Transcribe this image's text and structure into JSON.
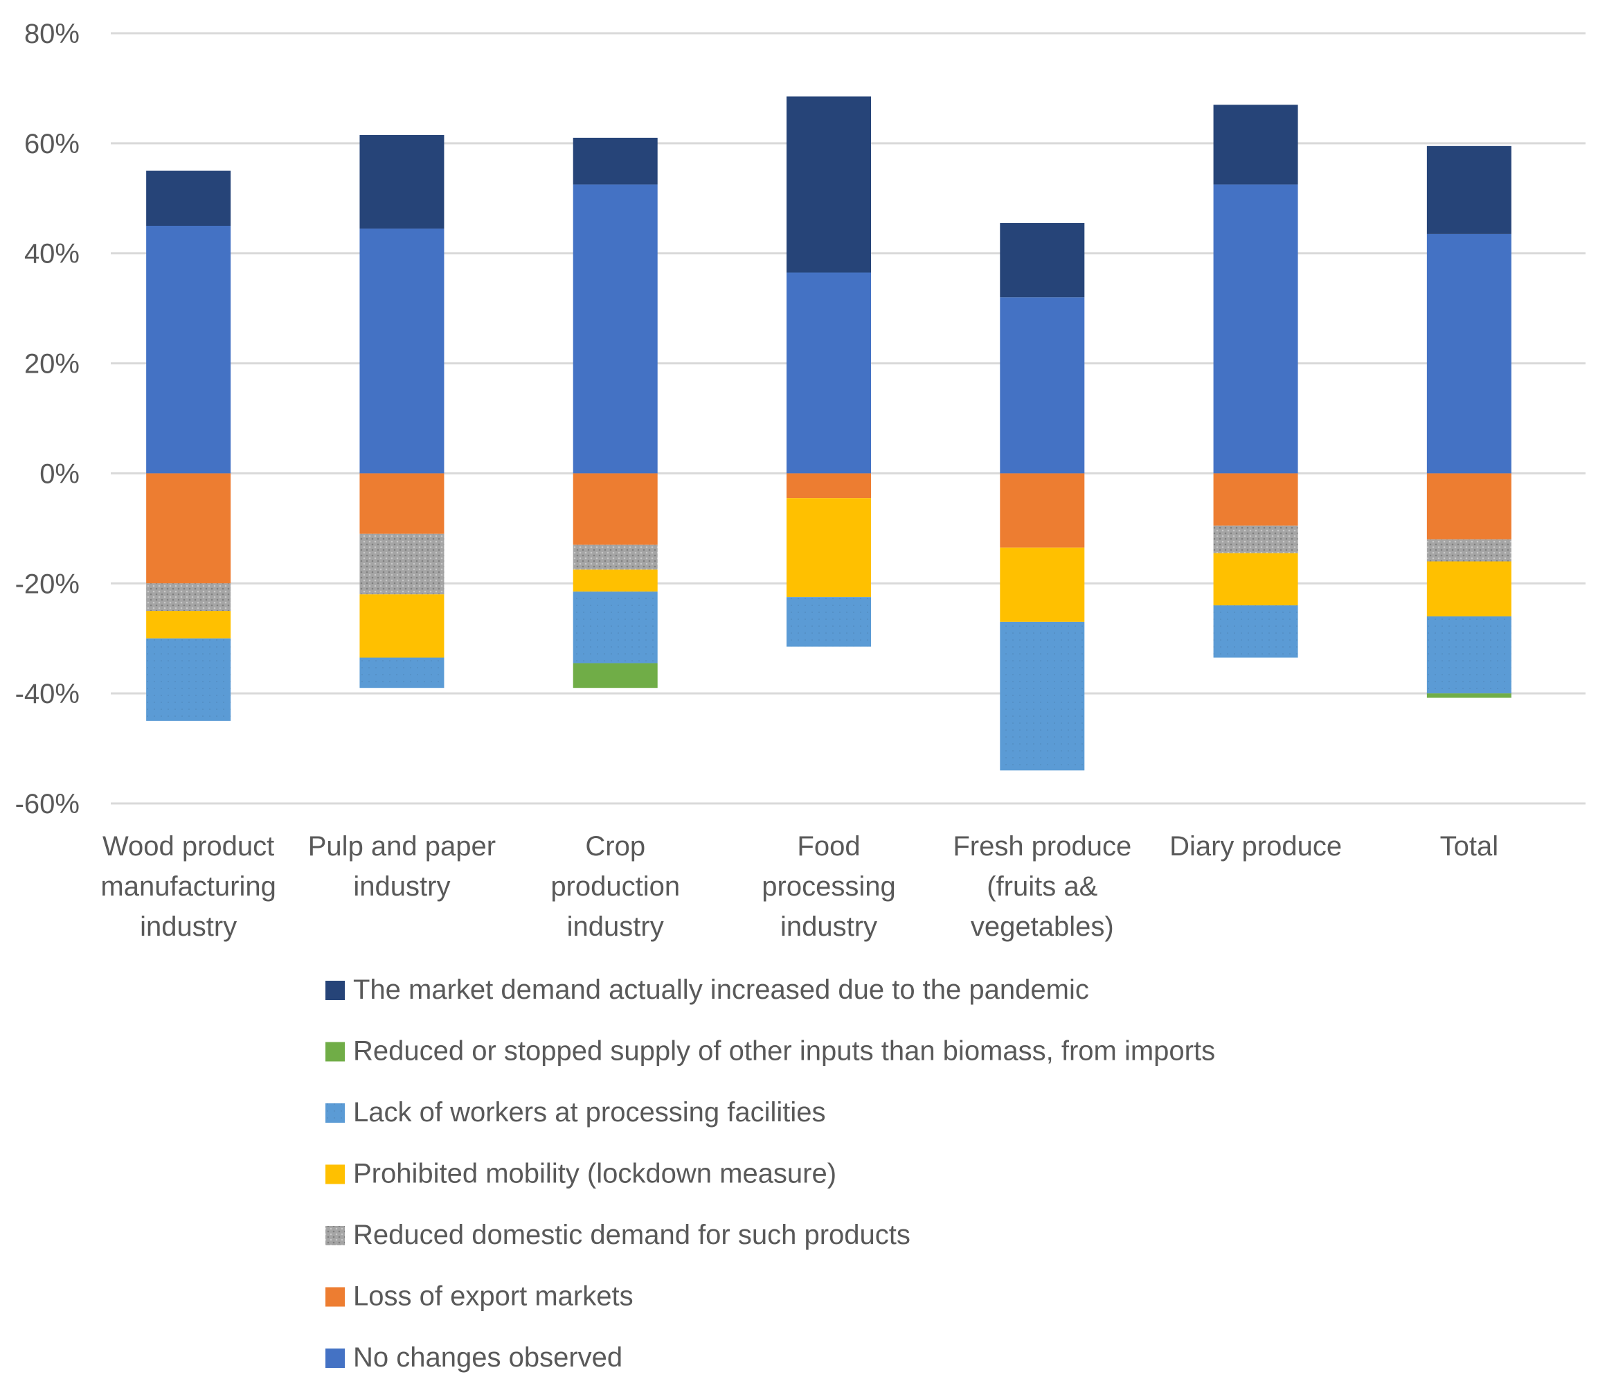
{
  "chart_data": {
    "type": "bar",
    "stacked": true,
    "title": "",
    "xlabel": "",
    "ylabel": "",
    "ylim": [
      -60,
      80
    ],
    "yticks": [
      "80%",
      "60%",
      "40%",
      "20%",
      "0%",
      "-20%",
      "-40%",
      "-60%"
    ],
    "ytick_values": [
      80,
      60,
      40,
      20,
      0,
      -20,
      -40,
      -60
    ],
    "grid": true,
    "categories": [
      [
        "Wood product",
        "manufacturing",
        "industry"
      ],
      [
        "Pulp and paper",
        "industry"
      ],
      [
        "Crop",
        "production",
        "industry"
      ],
      [
        "Food",
        "processing",
        "industry"
      ],
      [
        "Fresh produce",
        "(fruits a&",
        "vegetables)"
      ],
      [
        "Diary produce"
      ],
      [
        "Total"
      ]
    ],
    "series": [
      {
        "name": "No changes observed",
        "color": "#4472C4",
        "values": [
          45,
          44.5,
          52.5,
          36.5,
          32,
          52.5,
          43.5
        ],
        "sign": "positive"
      },
      {
        "name": "The market demand actually increased due to the pandemic",
        "color": "#264478",
        "values": [
          10,
          17,
          8.5,
          32,
          13.5,
          14.5,
          16
        ],
        "sign": "positive"
      },
      {
        "name": "Loss of export markets",
        "color": "#ED7D31",
        "values": [
          -20,
          -11,
          -13,
          -4.5,
          -13.5,
          -9.5,
          -12
        ],
        "sign": "negative"
      },
      {
        "name": "Reduced domestic demand for such products",
        "color": "#A5A5A5",
        "values": [
          -5,
          -11,
          -4.5,
          0,
          0,
          -5,
          -4
        ],
        "sign": "negative"
      },
      {
        "name": "Prohibited mobility (lockdown measure)",
        "color": "#FFC000",
        "values": [
          -5,
          -11.5,
          -4,
          -18,
          -13.5,
          -9.5,
          -10
        ],
        "sign": "negative"
      },
      {
        "name": "Lack of workers at processing facilities",
        "color": "#5B9BD5",
        "values": [
          -15,
          -5.5,
          -13,
          -9,
          -27,
          -9.5,
          -14
        ],
        "sign": "negative"
      },
      {
        "name": "Reduced or stopped supply of other inputs than biomass, from imports",
        "color": "#70AD47",
        "values": [
          0,
          0,
          -4.5,
          0,
          0,
          0,
          -0.8
        ],
        "sign": "negative"
      }
    ],
    "legend_order": [
      "The market demand actually increased due to the pandemic",
      "Reduced or stopped supply of other inputs than biomass, from imports",
      "Lack of workers at processing facilities",
      "Prohibited mobility (lockdown measure)",
      "Reduced domestic demand for such products",
      "Loss of export markets",
      "No changes observed"
    ],
    "legend_position": "bottom"
  }
}
